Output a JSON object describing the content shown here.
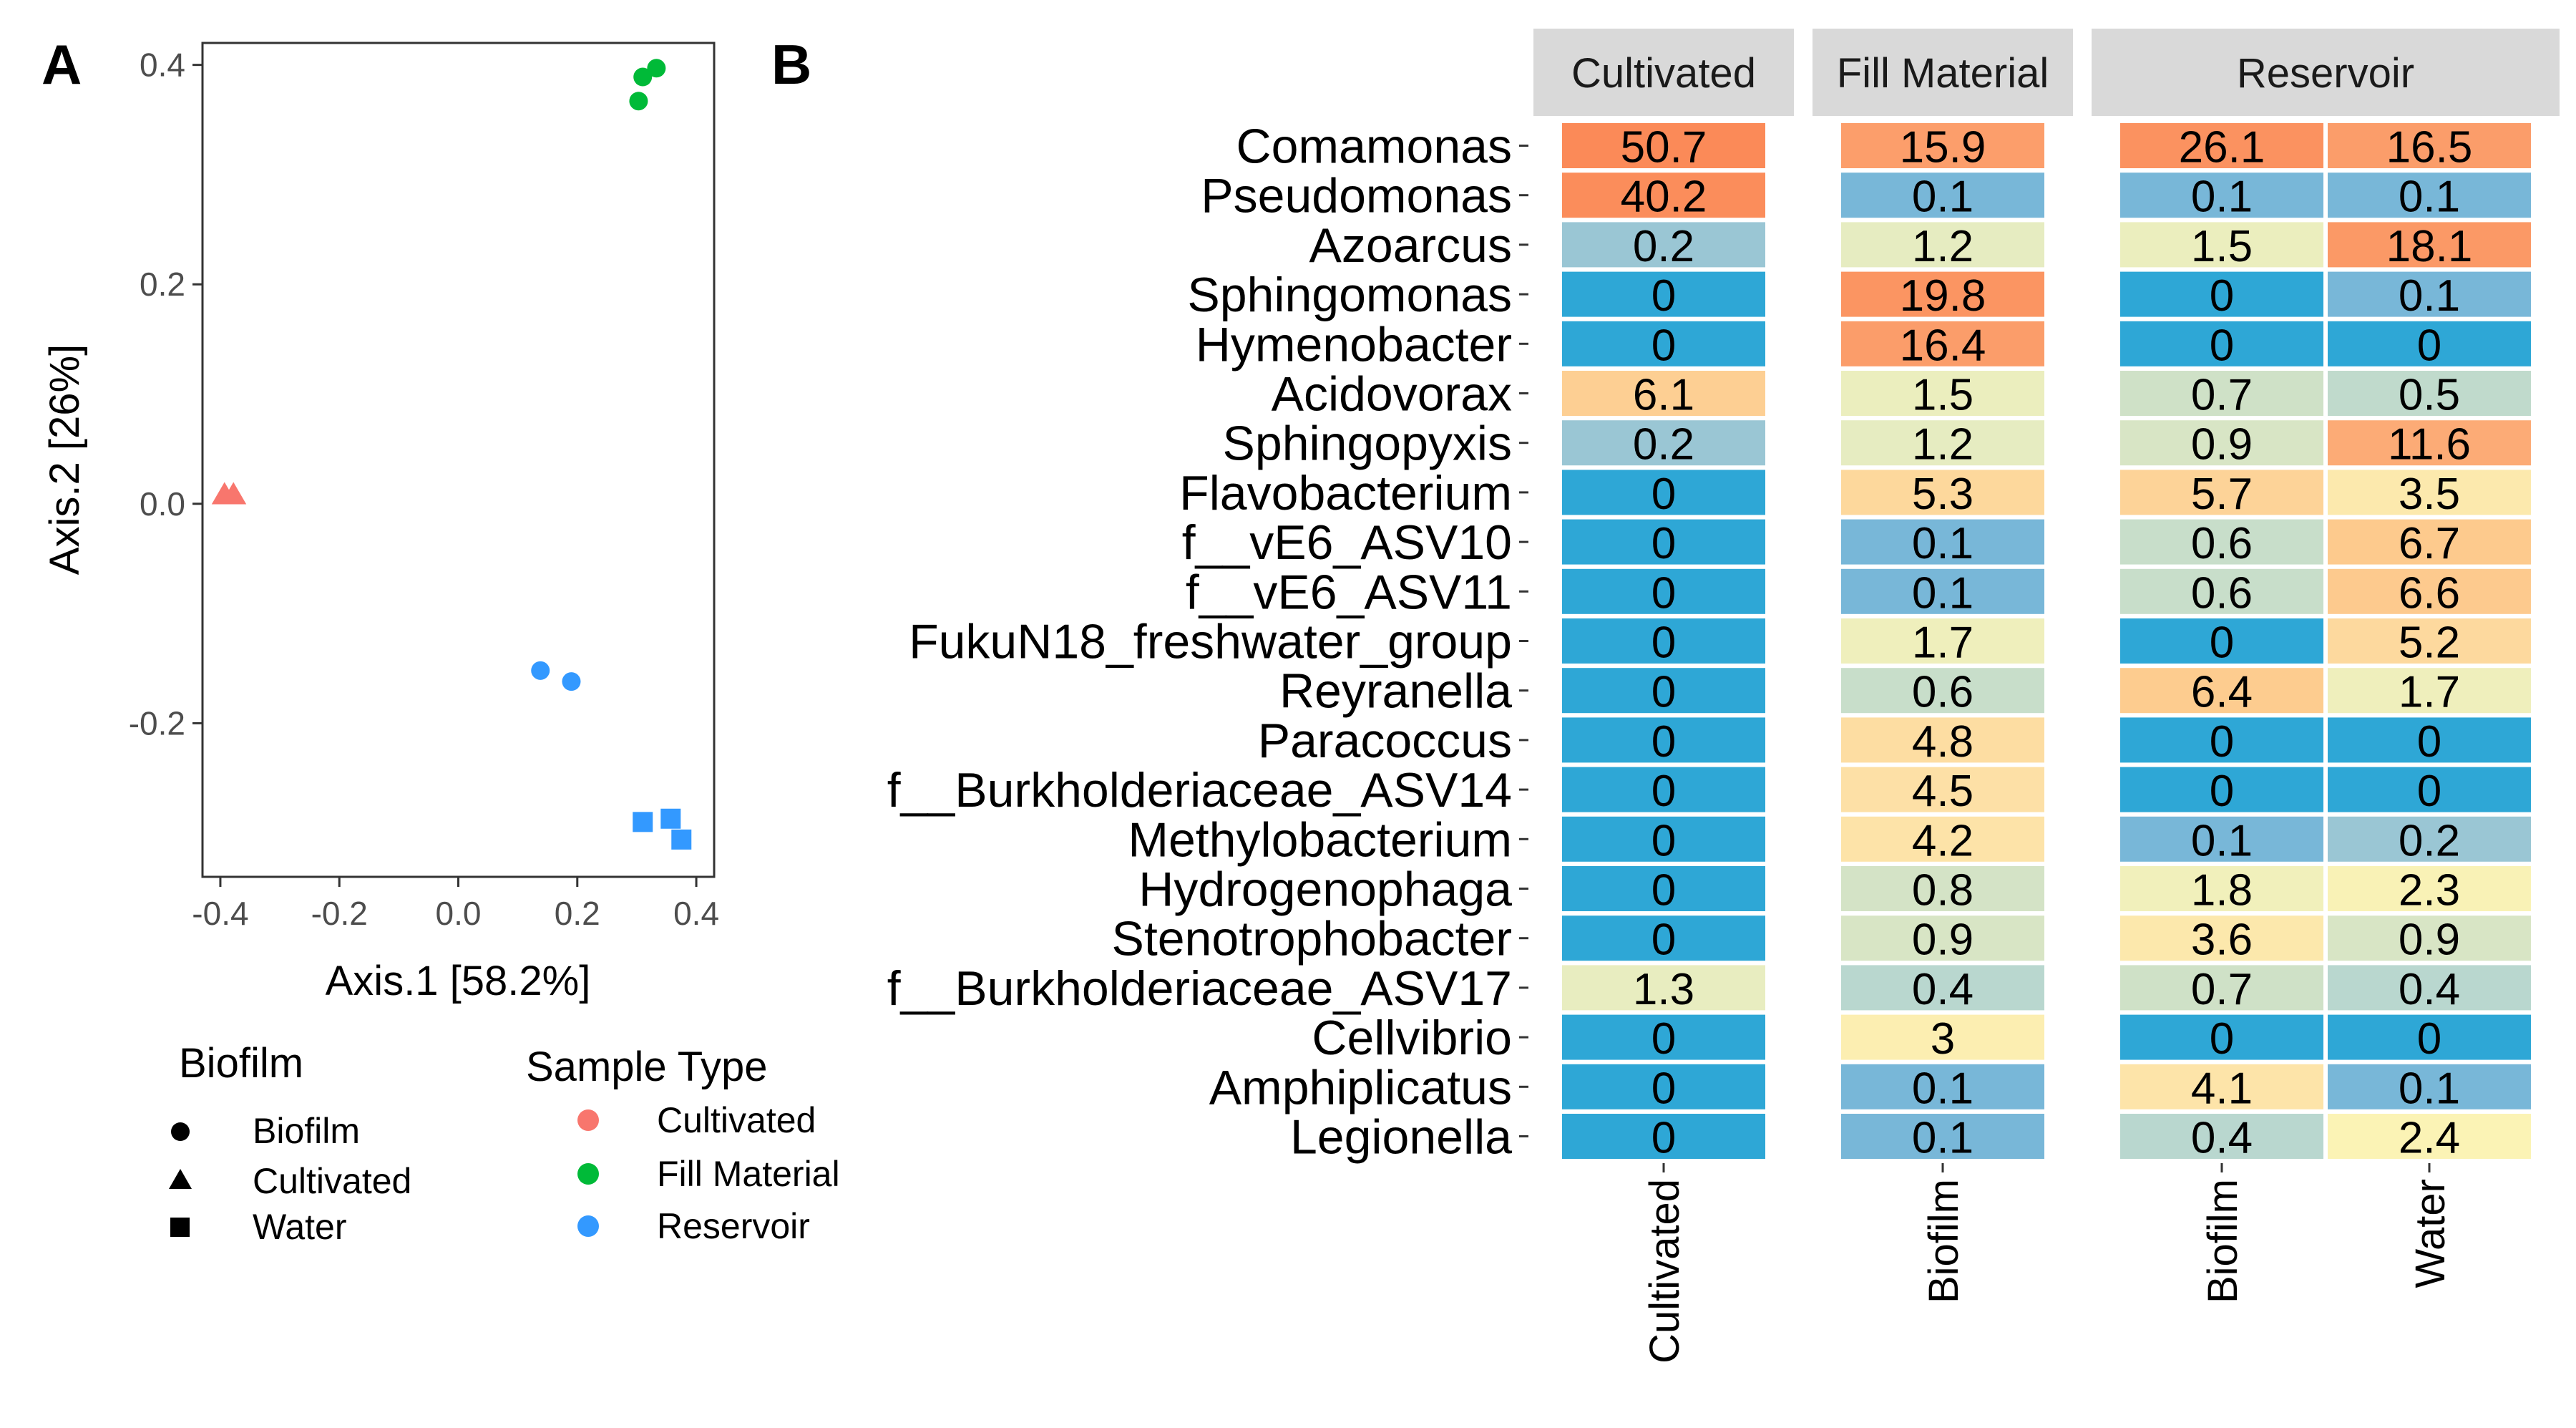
{
  "panel_labels": {
    "a": "A",
    "b": "B"
  },
  "chart_data": [
    {
      "type": "scatter",
      "panel": "A",
      "xlabel": "Axis.1   [58.2%]",
      "ylabel": "Axis.2   [26%]",
      "xlim": [
        -0.43,
        0.43
      ],
      "ylim": [
        -0.34,
        0.42
      ],
      "xticks": [
        -0.4,
        -0.2,
        0.0,
        0.2,
        0.4
      ],
      "xtick_labels": [
        "-0.4",
        "-0.2",
        "0.0",
        "0.2",
        "0.4"
      ],
      "yticks": [
        0.4,
        0.2,
        0.0,
        -0.2
      ],
      "ytick_labels": [
        "0.4",
        "0.2",
        "0.0",
        "-0.2"
      ],
      "colors": {
        "Cultivated": "#F8766D",
        "Fill Material": "#00BA38",
        "Reservoir": "#3399FF"
      },
      "points": [
        {
          "x": 0.31,
          "y": 0.389,
          "shape": "Biofilm",
          "sample_type": "Fill Material"
        },
        {
          "x": 0.333,
          "y": 0.397,
          "shape": "Biofilm",
          "sample_type": "Fill Material"
        },
        {
          "x": 0.303,
          "y": 0.367,
          "shape": "Biofilm",
          "sample_type": "Fill Material"
        },
        {
          "x": -0.393,
          "y": 0.008,
          "shape": "Cultivated",
          "sample_type": "Cultivated"
        },
        {
          "x": -0.378,
          "y": 0.008,
          "shape": "Cultivated",
          "sample_type": "Cultivated"
        },
        {
          "x": 0.138,
          "y": -0.152,
          "shape": "Biofilm",
          "sample_type": "Reservoir"
        },
        {
          "x": 0.19,
          "y": -0.162,
          "shape": "Biofilm",
          "sample_type": "Reservoir"
        },
        {
          "x": 0.31,
          "y": -0.29,
          "shape": "Water",
          "sample_type": "Reservoir"
        },
        {
          "x": 0.357,
          "y": -0.287,
          "shape": "Water",
          "sample_type": "Reservoir"
        },
        {
          "x": 0.375,
          "y": -0.306,
          "shape": "Water",
          "sample_type": "Reservoir"
        }
      ],
      "legend": {
        "shape_title": "Biofilm",
        "shape_entries": [
          "Biofilm",
          "Cultivated",
          "Water"
        ],
        "color_title": "Sample Type",
        "color_entries": [
          "Cultivated",
          "Fill Material",
          "Reservoir"
        ]
      }
    },
    {
      "type": "heatmap",
      "panel": "B",
      "facets": [
        {
          "label": "Cultivated",
          "columns": [
            "Cultivated"
          ]
        },
        {
          "label": "Fill Material",
          "columns": [
            "Biofilm"
          ]
        },
        {
          "label": "Reservoir",
          "columns": [
            "Biofilm",
            "Water"
          ]
        }
      ],
      "rows": [
        "Comamonas",
        "Pseudomonas",
        "Azoarcus",
        "Sphingomonas",
        "Hymenobacter",
        "Acidovorax",
        "Sphingopyxis",
        "Flavobacterium",
        "f__vE6_ASV10",
        "f__vE6_ASV11",
        "FukuN18_freshwater_group",
        "Reyranella",
        "Paracoccus",
        "f__Burkholderiaceae_ASV14",
        "Methylobacterium",
        "Hydrogenophaga",
        "Stenotrophobacter",
        "f__Burkholderiaceae_ASV17",
        "Cellvibrio",
        "Amphiplicatus",
        "Legionella"
      ],
      "values": [
        [
          50.7,
          15.9,
          26.1,
          16.5
        ],
        [
          40.2,
          0.1,
          0.1,
          0.1
        ],
        [
          0.2,
          1.2,
          1.5,
          18.1
        ],
        [
          0,
          19.8,
          0,
          0.1
        ],
        [
          0,
          16.4,
          0,
          0
        ],
        [
          6.1,
          1.5,
          0.7,
          0.5
        ],
        [
          0.2,
          1.2,
          0.9,
          11.6
        ],
        [
          0,
          5.3,
          5.7,
          3.5
        ],
        [
          0,
          0.1,
          0.6,
          6.7
        ],
        [
          0,
          0.1,
          0.6,
          6.6
        ],
        [
          0,
          1.7,
          0,
          5.2
        ],
        [
          0,
          0.6,
          6.4,
          1.7
        ],
        [
          0,
          4.8,
          0,
          0
        ],
        [
          0,
          4.5,
          0,
          0
        ],
        [
          0,
          4.2,
          0.1,
          0.2
        ],
        [
          0,
          0.8,
          1.8,
          2.3
        ],
        [
          0,
          0.9,
          3.6,
          0.9
        ],
        [
          1.3,
          0.4,
          0.7,
          0.4
        ],
        [
          0,
          3,
          0,
          0
        ],
        [
          0,
          0.1,
          4.1,
          0.1
        ],
        [
          0,
          0.1,
          0.4,
          2.4
        ]
      ],
      "value_labels": [
        [
          "50.7",
          "15.9",
          "26.1",
          "16.5"
        ],
        [
          "40.2",
          "0.1",
          "0.1",
          "0.1"
        ],
        [
          "0.2",
          "1.2",
          "1.5",
          "18.1"
        ],
        [
          "0",
          "19.8",
          "0",
          "0.1"
        ],
        [
          "0",
          "16.4",
          "0",
          "0"
        ],
        [
          "6.1",
          "1.5",
          "0.7",
          "0.5"
        ],
        [
          "0.2",
          "1.2",
          "0.9",
          "11.6"
        ],
        [
          "0",
          "5.3",
          "5.7",
          "3.5"
        ],
        [
          "0",
          "0.1",
          "0.6",
          "6.7"
        ],
        [
          "0",
          "0.1",
          "0.6",
          "6.6"
        ],
        [
          "0",
          "1.7",
          "0",
          "5.2"
        ],
        [
          "0",
          "0.6",
          "6.4",
          "1.7"
        ],
        [
          "0",
          "4.8",
          "0",
          "0"
        ],
        [
          "0",
          "4.5",
          "0",
          "0"
        ],
        [
          "0",
          "4.2",
          "0.1",
          "0.2"
        ],
        [
          "0",
          "0.8",
          "1.8",
          "2.3"
        ],
        [
          "0",
          "0.9",
          "3.6",
          "0.9"
        ],
        [
          "1.3",
          "0.4",
          "0.7",
          "0.4"
        ],
        [
          "0",
          "3",
          "0",
          "0"
        ],
        [
          "0",
          "0.1",
          "4.1",
          "0.1"
        ],
        [
          "0",
          "0.1",
          "0.4",
          "2.4"
        ]
      ],
      "colors": {
        "zero": "#2ea7d6",
        "strip_bg": "#d9d9d9",
        "scale": [
          {
            "v": 0,
            "c": "#2ea7d6"
          },
          {
            "v": 0.1,
            "c": "#78b7d8"
          },
          {
            "v": 0.2,
            "c": "#9ac6d4"
          },
          {
            "v": 0.4,
            "c": "#b9d7cf"
          },
          {
            "v": 0.7,
            "c": "#cfe1c7"
          },
          {
            "v": 1.2,
            "c": "#e6ecc1"
          },
          {
            "v": 2.4,
            "c": "#fbf3b5"
          },
          {
            "v": 4.5,
            "c": "#fde0a6"
          },
          {
            "v": 6.5,
            "c": "#fdcb8e"
          },
          {
            "v": 12,
            "c": "#fca874"
          },
          {
            "v": 20,
            "c": "#fb9462"
          },
          {
            "v": 51,
            "c": "#fb8a58"
          }
        ]
      }
    }
  ]
}
